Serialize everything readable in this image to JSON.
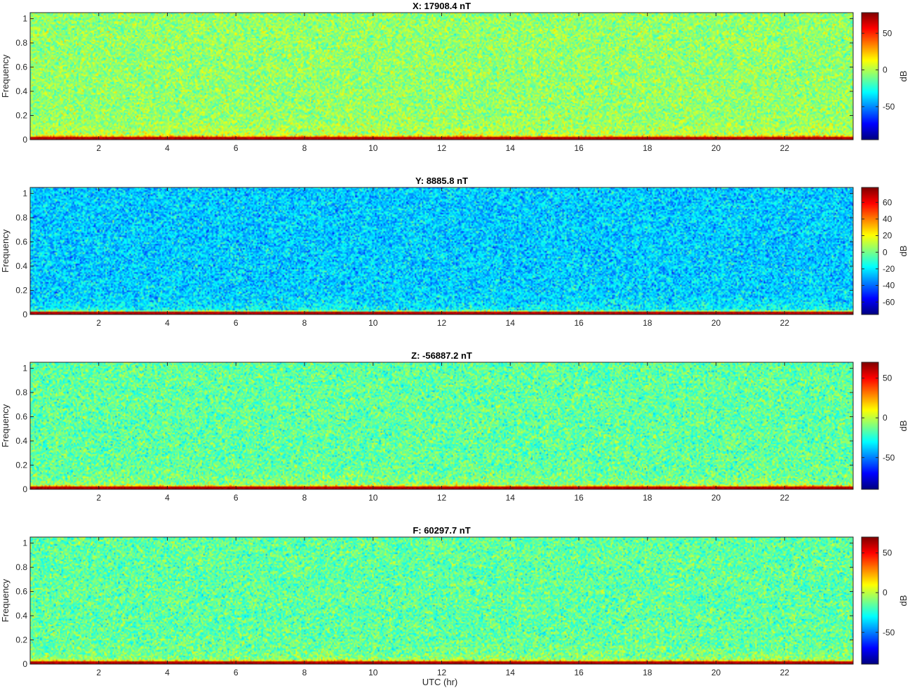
{
  "figure": {
    "xlabel": "UTC (hr)"
  },
  "chart_data": [
    {
      "type": "heatmap",
      "title": "X: 17908.4 nT",
      "xlabel": "",
      "ylabel": "Frequency",
      "colorbar_label": "dB",
      "xlim": [
        0,
        24
      ],
      "ylim": [
        0,
        1.05
      ],
      "x_ticks": [
        2,
        4,
        6,
        8,
        10,
        12,
        14,
        16,
        18,
        20,
        22
      ],
      "y_ticks": [
        0,
        0.2,
        0.4,
        0.6,
        0.8,
        1
      ],
      "clim": [
        -95,
        78
      ],
      "colorbar_ticks": [
        -50,
        0,
        50
      ],
      "colormap": "jet",
      "background_db": -5,
      "noise_db": 10
    },
    {
      "type": "heatmap",
      "title": "Y: 8885.8 nT",
      "xlabel": "",
      "ylabel": "Frequency",
      "colorbar_label": "dB",
      "xlim": [
        0,
        24
      ],
      "ylim": [
        0,
        1.05
      ],
      "x_ticks": [
        2,
        4,
        6,
        8,
        10,
        12,
        14,
        16,
        18,
        20,
        22
      ],
      "y_ticks": [
        0,
        0.2,
        0.4,
        0.6,
        0.8,
        1
      ],
      "clim": [
        -75,
        78
      ],
      "colorbar_ticks": [
        -60,
        -40,
        -20,
        0,
        20,
        40,
        60
      ],
      "colormap": "jet",
      "background_db": -25,
      "noise_db": 10
    },
    {
      "type": "heatmap",
      "title": "Z: -56887.2 nT",
      "xlabel": "",
      "ylabel": "Frequency",
      "colorbar_label": "dB",
      "xlim": [
        0,
        24
      ],
      "ylim": [
        0,
        1.05
      ],
      "x_ticks": [
        2,
        4,
        6,
        8,
        10,
        12,
        14,
        16,
        18,
        20,
        22
      ],
      "y_ticks": [
        0,
        0.2,
        0.4,
        0.6,
        0.8,
        1
      ],
      "clim": [
        -90,
        70
      ],
      "colorbar_ticks": [
        -50,
        0,
        50
      ],
      "colormap": "jet",
      "background_db": -15,
      "noise_db": 10
    },
    {
      "type": "heatmap",
      "title": "F: 60297.7 nT",
      "xlabel": "",
      "ylabel": "Frequency",
      "colorbar_label": "dB",
      "xlim": [
        0,
        24
      ],
      "ylim": [
        0,
        1.05
      ],
      "x_ticks": [
        2,
        4,
        6,
        8,
        10,
        12,
        14,
        16,
        18,
        20,
        22
      ],
      "y_ticks": [
        0,
        0.2,
        0.4,
        0.6,
        0.8,
        1
      ],
      "clim": [
        -90,
        70
      ],
      "colorbar_ticks": [
        -50,
        0,
        50
      ],
      "colormap": "jet",
      "background_db": -15,
      "noise_db": 10
    }
  ]
}
